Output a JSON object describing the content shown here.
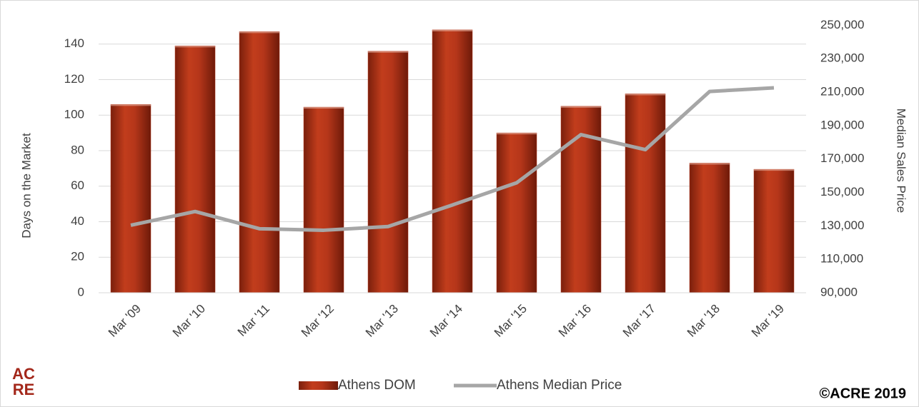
{
  "chart_data": {
    "type": "bar",
    "categories": [
      "Mar '09",
      "Mar '10",
      "Mar '11",
      "Mar '12",
      "Mar '13",
      "Mar '14",
      "Mar '15",
      "Mar '16",
      "Mar '17",
      "Mar '18",
      "Mar '19"
    ],
    "series": [
      {
        "name": "Athens DOM",
        "color": "#b5361a",
        "type": "bar",
        "values": [
          106,
          139,
          147,
          104.5,
          136,
          148,
          90,
          105,
          112,
          73,
          69.5
        ]
      },
      {
        "name": "Athens Median Price",
        "color": "#a6a6a6",
        "type": "line",
        "axis": "y2",
        "values": [
          130400,
          138600,
          128300,
          127400,
          129600,
          142500,
          155800,
          184600,
          175600,
          210400,
          212600
        ]
      }
    ],
    "y_label": "Days on the Market",
    "y2_label": "Median Sales Price",
    "ylim": [
      0,
      160
    ],
    "yticks": [
      0,
      20,
      40,
      60,
      80,
      100,
      120,
      140
    ],
    "y2lim": [
      90000,
      260000
    ],
    "y2ticks": [
      {
        "value": 90000,
        "label": "90,000"
      },
      {
        "value": 110000,
        "label": "110,000"
      },
      {
        "value": 130000,
        "label": "130,000"
      },
      {
        "value": 150000,
        "label": "150,000"
      },
      {
        "value": 170000,
        "label": "170,000"
      },
      {
        "value": 190000,
        "label": "190,000"
      },
      {
        "value": 210000,
        "label": "210,000"
      },
      {
        "value": 230000,
        "label": "230,000"
      },
      {
        "value": 250000,
        "label": "250,000"
      }
    ],
    "grid": true,
    "legend": "bottom"
  },
  "logo_lines": [
    "AC",
    "RE"
  ],
  "copyright": "©ACRE 2019"
}
